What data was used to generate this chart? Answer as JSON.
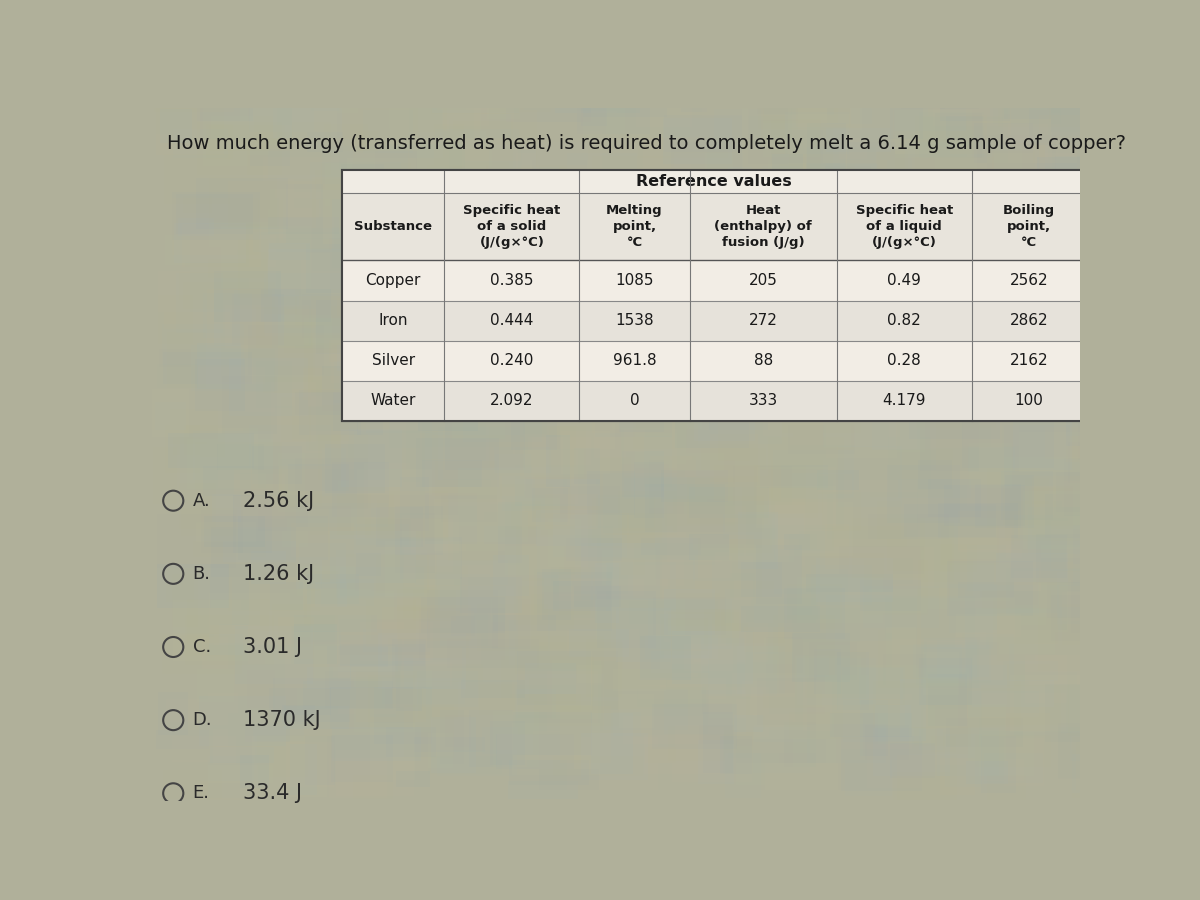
{
  "question": "How much energy (transferred as heat) is required to completely melt a 6.14 g sample of copper?",
  "table_title": "Reference values",
  "col_headers": [
    "Substance",
    "Specific heat\nof a solid\n(J/(g×°C)",
    "Melting\npoint,\n°C",
    "Heat\n(enthalpy) of\nfusion (J/g)",
    "Specific heat\nof a liquid\n(J/(g×°C)",
    "Boiling\npoint,\n°C"
  ],
  "rows": [
    [
      "Copper",
      "0.385",
      "1085",
      "205",
      "0.49",
      "2562"
    ],
    [
      "Iron",
      "0.444",
      "1538",
      "272",
      "0.82",
      "2862"
    ],
    [
      "Silver",
      "0.240",
      "961.8",
      "88",
      "0.28",
      "2162"
    ],
    [
      "Water",
      "2.092",
      "0",
      "333",
      "4.179",
      "100"
    ]
  ],
  "options": [
    [
      "A.",
      "2.56 kJ"
    ],
    [
      "B.",
      "1.26 kJ"
    ],
    [
      "C.",
      "3.01 J"
    ],
    [
      "D.",
      "1370 kJ"
    ],
    [
      "E.",
      "33.4 J"
    ]
  ],
  "bg_color": "#b0b09a",
  "table_bg_color": "#f5f0e8",
  "table_title_bg": "#e8e4dc",
  "table_header_bg": "#e0dcd0",
  "table_row_colors": [
    "#f0ece4",
    "#e4e0d8"
  ],
  "table_border_color": "#555555",
  "question_color": "#1a1a1a",
  "option_text_color": "#2a2a2a",
  "header_text_color": "#1a1a1a",
  "cell_text_color": "#1a1a1a"
}
